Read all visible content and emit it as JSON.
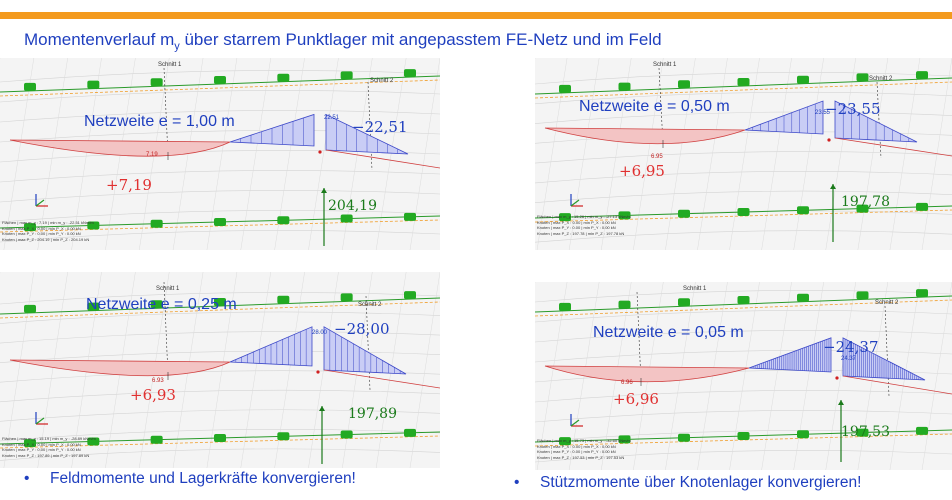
{
  "slide": {
    "title_main": "Momentenverlauf m",
    "title_sub": "y",
    "title_rest": " über starrem Punktlager mit angepasstem FE-Netz und im Feld"
  },
  "panels": [
    {
      "mesh_label": "Netzweite e = 1,00 m",
      "neg_moment": "−22,51",
      "neg_moment_small": "22.51",
      "pos_moment": "+7,19",
      "pos_moment_small": "7.19",
      "reaction": "204,19",
      "cut1": "Schnitt 1",
      "cut2": "Schnitt 2",
      "info": [
        "Flächen | max m_y : 7.19 | min m_y : -22.51 kNm/m",
        "Knoten | max P_X : 0.00 | min P_X : 0.00 kN",
        "Knoten | max P_Y : 0.00 | min P_Y : 0.00 kN",
        "Knoten | max P_Z : 204.19 | min P_Z : 204.19 kN"
      ]
    },
    {
      "mesh_label": "Netzweite e = 0,50 m",
      "neg_moment": "−23,55",
      "neg_moment_small": "23.55",
      "pos_moment": "+6,95",
      "pos_moment_small": "6.95",
      "reaction": "197,78",
      "cut1": "Schnitt 1",
      "cut2": "Schnitt 2",
      "info": [
        "Flächen | max m_y : 15.26 | min m_y : -27.13 kNm/m",
        "Knoten | max P_X : 0.00 | min P_X : 0.00 kN",
        "Knoten | max P_Y : 0.00 | min P_Y : 0.00 kN",
        "Knoten | max P_Z : 197.78 | min P_Z : 197.78 kN"
      ]
    },
    {
      "mesh_label": "Netzweite e = 0,25 m",
      "neg_moment": "−28,00",
      "neg_moment_small": "28.00",
      "pos_moment": "+6,93",
      "pos_moment_small": "6.93",
      "reaction": "197,89",
      "cut1": "Schnitt 1",
      "cut2": "Schnitt 2",
      "info": [
        "Flächen | max m_y : 15.19 | min m_y : -28.89 kNm/m",
        "Knoten | max P_X : 0.00 | min P_X : 0.00 kN",
        "Knoten | max P_Y : 0.00 | min P_Y : 0.00 kN",
        "Knoten | max P_Z : 197.89 | min P_Z : 197.89 kN"
      ]
    },
    {
      "mesh_label": "Netzweite e = 0,05 m",
      "neg_moment": "−24,37",
      "neg_moment_small": "24.37",
      "pos_moment": "+6,96",
      "pos_moment_small": "6.96",
      "reaction": "197,53",
      "cut1": "Schnitt 1",
      "cut2": "Schnitt 2",
      "info": [
        "Flächen | max m_y : 15.73 | min m_y : -32.60 kNm/m",
        "Knoten | max P_X : 0.00 | min P_X : 0.00 kN",
        "Knoten | max P_Y : 0.00 | min P_Y : 0.00 kN",
        "Knoten | max P_Z : 197.53 | min P_Z : 197.53 kN"
      ]
    }
  ],
  "bullets": {
    "left_marker": "•",
    "left": "Feldmomente und Lagerkräfte konvergieren!",
    "right_marker": "•",
    "right": "Stützmomente über Knotenlager konvergieren!"
  },
  "colors": {
    "accent_bar": "#f39a1e",
    "title_blue": "#1f3fbf",
    "positive_red": "#e03030",
    "reaction_green": "#1a7a1a",
    "support_green": "#22aa22"
  }
}
